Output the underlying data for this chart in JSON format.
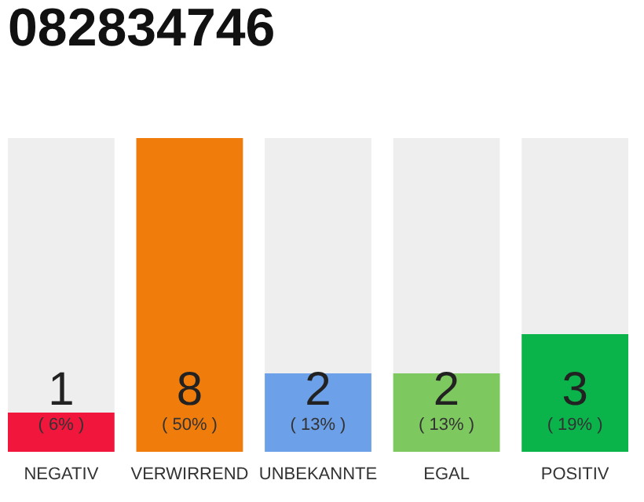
{
  "chart_data": {
    "type": "bar",
    "title": "082834746",
    "categories": [
      "NEGATIV",
      "VERWIRREND",
      "UNBEKANNTE",
      "EGAL",
      "POSITIV"
    ],
    "values": [
      1,
      8,
      2,
      2,
      3
    ],
    "colors": [
      "#f0163c",
      "#f07c0c",
      "#6ca0e8",
      "#7ec860",
      "#0ab44a"
    ],
    "data_labels": true,
    "annotations": [
      "( 6% )",
      "( 50% )",
      "( 13% )",
      "( 13% )",
      "( 19% )"
    ],
    "tick_labels": "x"
  }
}
